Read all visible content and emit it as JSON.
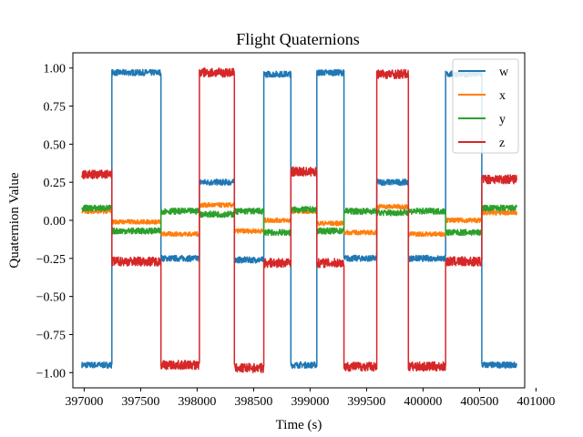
{
  "chart_data": {
    "type": "line",
    "title": "Flight Quaternions",
    "xlabel": "Time (s)",
    "ylabel": "Quaternion Value",
    "xlim": [
      396900,
      400900
    ],
    "ylim": [
      -1.1,
      1.1
    ],
    "xticks": [
      397000,
      397500,
      398000,
      398500,
      399000,
      399500,
      400000,
      400500,
      401000
    ],
    "xtick_labels": [
      "397000",
      "397500",
      "398000",
      "398500",
      "399000",
      "399500",
      "400000",
      "400500",
      "401000"
    ],
    "yticks": [
      -1.0,
      -0.75,
      -0.5,
      -0.25,
      0.0,
      0.25,
      0.5,
      0.75,
      1.0
    ],
    "ytick_labels": [
      "−1.00",
      "−0.75",
      "−0.50",
      "−0.25",
      "0.00",
      "0.25",
      "0.50",
      "0.75",
      "1.00"
    ],
    "legend_position": "top-right",
    "segments": [
      {
        "t0": 396980,
        "t1": 397245,
        "w": -0.95,
        "x": 0.06,
        "y": 0.08,
        "z": 0.3
      },
      {
        "t0": 397245,
        "t1": 397680,
        "w": 0.97,
        "x": -0.01,
        "y": -0.07,
        "z": -0.27
      },
      {
        "t0": 397680,
        "t1": 398020,
        "w": -0.25,
        "x": -0.09,
        "y": 0.06,
        "z": -0.95
      },
      {
        "t0": 398020,
        "t1": 398330,
        "w": 0.25,
        "x": 0.1,
        "y": 0.04,
        "z": 0.97
      },
      {
        "t0": 398330,
        "t1": 398590,
        "w": -0.26,
        "x": -0.07,
        "y": 0.06,
        "z": -0.97
      },
      {
        "t0": 398590,
        "t1": 398830,
        "w": 0.96,
        "x": 0.0,
        "y": -0.08,
        "z": -0.28
      },
      {
        "t0": 398830,
        "t1": 399060,
        "w": -0.95,
        "x": 0.06,
        "y": 0.07,
        "z": 0.32
      },
      {
        "t0": 399060,
        "t1": 399300,
        "w": 0.97,
        "x": -0.02,
        "y": -0.07,
        "z": -0.28
      },
      {
        "t0": 399300,
        "t1": 399590,
        "w": -0.25,
        "x": -0.08,
        "y": 0.06,
        "z": -0.96
      },
      {
        "t0": 399590,
        "t1": 399870,
        "w": 0.25,
        "x": 0.09,
        "y": 0.05,
        "z": 0.96
      },
      {
        "t0": 399870,
        "t1": 400200,
        "w": -0.25,
        "x": -0.09,
        "y": 0.06,
        "z": -0.96
      },
      {
        "t0": 400200,
        "t1": 400520,
        "w": 0.96,
        "x": 0.0,
        "y": -0.08,
        "z": -0.27
      },
      {
        "t0": 400520,
        "t1": 400830,
        "w": -0.95,
        "x": 0.05,
        "y": 0.08,
        "z": 0.27
      }
    ],
    "noise": {
      "w": 0.02,
      "x": 0.015,
      "y": 0.02,
      "z": 0.03
    },
    "series": [
      {
        "name": "w",
        "key": "w",
        "color": "#1f77b4"
      },
      {
        "name": "x",
        "key": "x",
        "color": "#ff7f0e"
      },
      {
        "name": "y",
        "key": "y",
        "color": "#2ca02c"
      },
      {
        "name": "z",
        "key": "z",
        "color": "#d62728"
      }
    ]
  }
}
